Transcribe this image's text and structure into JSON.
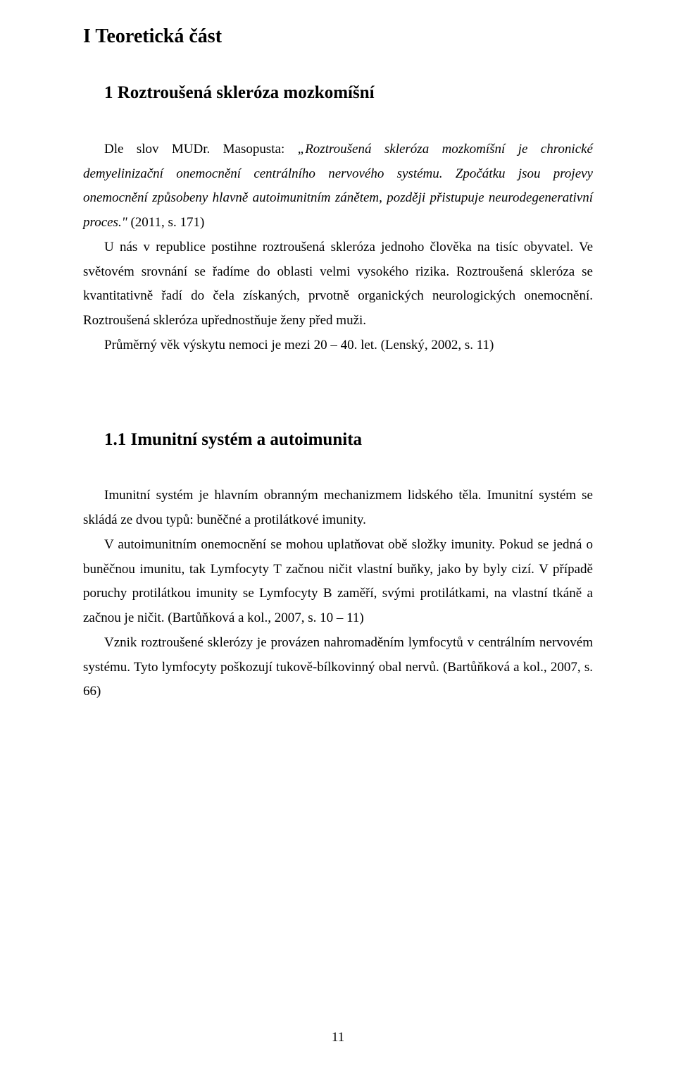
{
  "page_number": "11",
  "headings": {
    "h1": "I Teoretická část",
    "h2": "1 Roztroušená skleróza mozkomíšní",
    "h3": "1.1 Imunitní systém a autoimunita"
  },
  "block1": {
    "p1_pre": "Dle slov MUDr. Masopusta: ",
    "p1_quote": "„Roztroušená skleróza mozkomíšní je chronické demyelinizační onemocnění centrálního nervového systému. Zpočátku jsou projevy onemocnění způsobeny hlavně autoimunitním zánětem, později přistupuje neurodegenerativní proces.\"",
    "p1_post": " (2011, s. 171)",
    "p2": "U nás v republice postihne roztroušená skleróza jednoho člověka na tisíc obyvatel. Ve světovém srovnání se řadíme do oblasti velmi vysokého rizika. Roztroušená skleróza se kvantitativně řadí do čela získaných, prvotně organických neurologických onemocnění. Roztroušená skleróza upřednostňuje ženy před muži.",
    "p3": "Průměrný věk výskytu nemoci je mezi 20 – 40. let. (Lenský, 2002, s. 11)"
  },
  "block2": {
    "p1": "Imunitní systém je hlavním obranným mechanizmem lidského těla. Imunitní systém se skládá ze dvou typů: buněčné a protilátkové imunity.",
    "p2": "V autoimunitním onemocnění se mohou uplatňovat obě složky imunity. Pokud se jedná o buněčnou imunitu, tak Lymfocyty T začnou ničit vlastní buňky, jako by byly cizí. V případě poruchy protilátkou imunity se Lymfocyty B zaměří, svými protilátkami, na vlastní tkáně a začnou je ničit. (Bartůňková a kol., 2007, s. 10 – 11)",
    "p3": "Vznik roztroušené sklerózy je provázen nahromaděním lymfocytů v centrálním nervovém systému. Tyto lymfocyty poškozují tukově-bílkovinný obal nervů. (Bartůňková a kol., 2007, s. 66)"
  }
}
